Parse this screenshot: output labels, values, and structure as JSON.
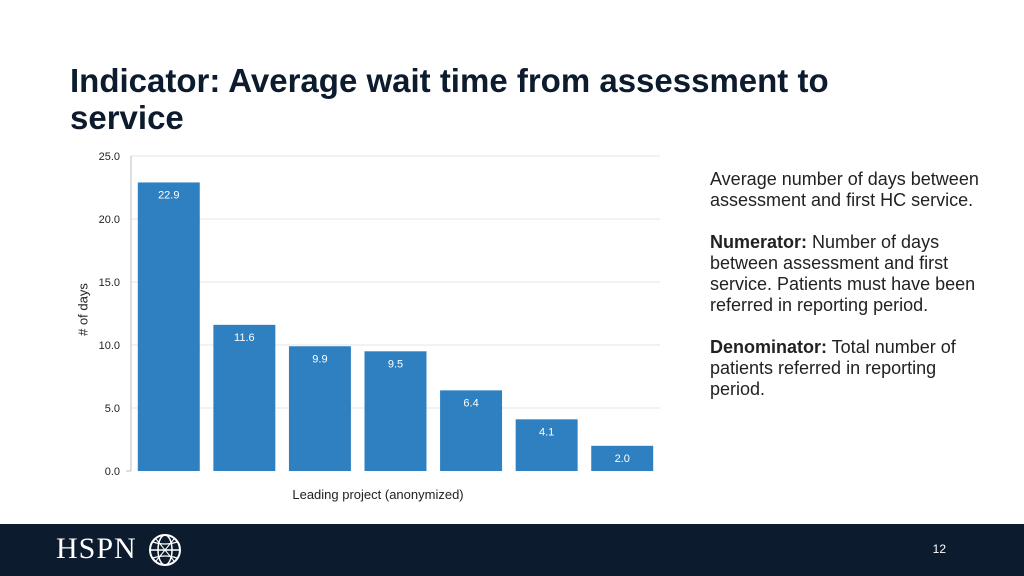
{
  "slide": {
    "title": "Indicator: Average wait time from assessment to service",
    "page_number": "12",
    "logo_text": "HSPN"
  },
  "notes": {
    "description": "Average number of days between assessment and first HC service.",
    "numerator_label": "Numerator:",
    "numerator_text": " Number of days between assessment and first service. Patients must have been referred in reporting period.",
    "denominator_label": "Denominator:",
    "denominator_text": " Total number of patients referred in reporting period."
  },
  "colors": {
    "bar": "#2e80c0",
    "footer": "#0d1b2e",
    "title": "#0d1b2e",
    "grid": "#e6e6e6"
  },
  "chart_data": {
    "type": "bar",
    "categories": [
      "",
      "",
      "",
      "",
      "",
      "",
      ""
    ],
    "values": [
      22.9,
      11.6,
      9.9,
      9.5,
      6.4,
      4.1,
      2.0
    ],
    "data_labels": [
      "22.9",
      "11.6",
      "9.9",
      "9.5",
      "6.4",
      "4.1",
      "2.0"
    ],
    "title": "",
    "xlabel": "Leading project (anonymized)",
    "ylabel": "# of days",
    "ylim": [
      0,
      25
    ],
    "yticks": [
      "0.0",
      "5.0",
      "10.0",
      "15.0",
      "20.0",
      "25.0"
    ],
    "grid": true,
    "legend": "none"
  }
}
